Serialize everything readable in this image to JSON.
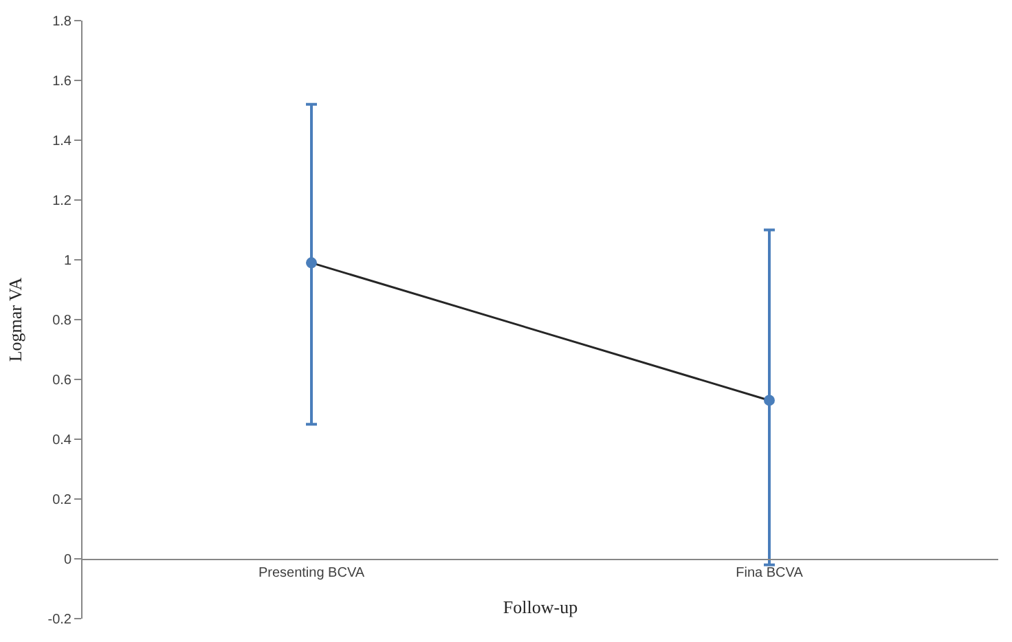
{
  "chart_data": {
    "type": "line",
    "xlabel": "Follow-up",
    "ylabel": "Logmar VA",
    "categories": [
      "Presenting BCVA",
      "Fina BCVA"
    ],
    "series": [
      {
        "color": "#262626",
        "colors": [
          "#4a7ebb",
          "#4a7ebb"
        ],
        "values": [
          0.99,
          0.53
        ],
        "errors": [
          [
            0.45,
            1.52
          ],
          [
            -0.02,
            1.1
          ]
        ]
      }
    ],
    "ylim": [
      -0.2,
      1.8
    ],
    "yticks": [
      -0.2,
      0,
      0.2,
      0.4,
      0.6,
      0.8,
      1,
      1.2,
      1.4,
      1.6,
      1.8
    ],
    "marker": "circle",
    "line_style": "solid"
  }
}
